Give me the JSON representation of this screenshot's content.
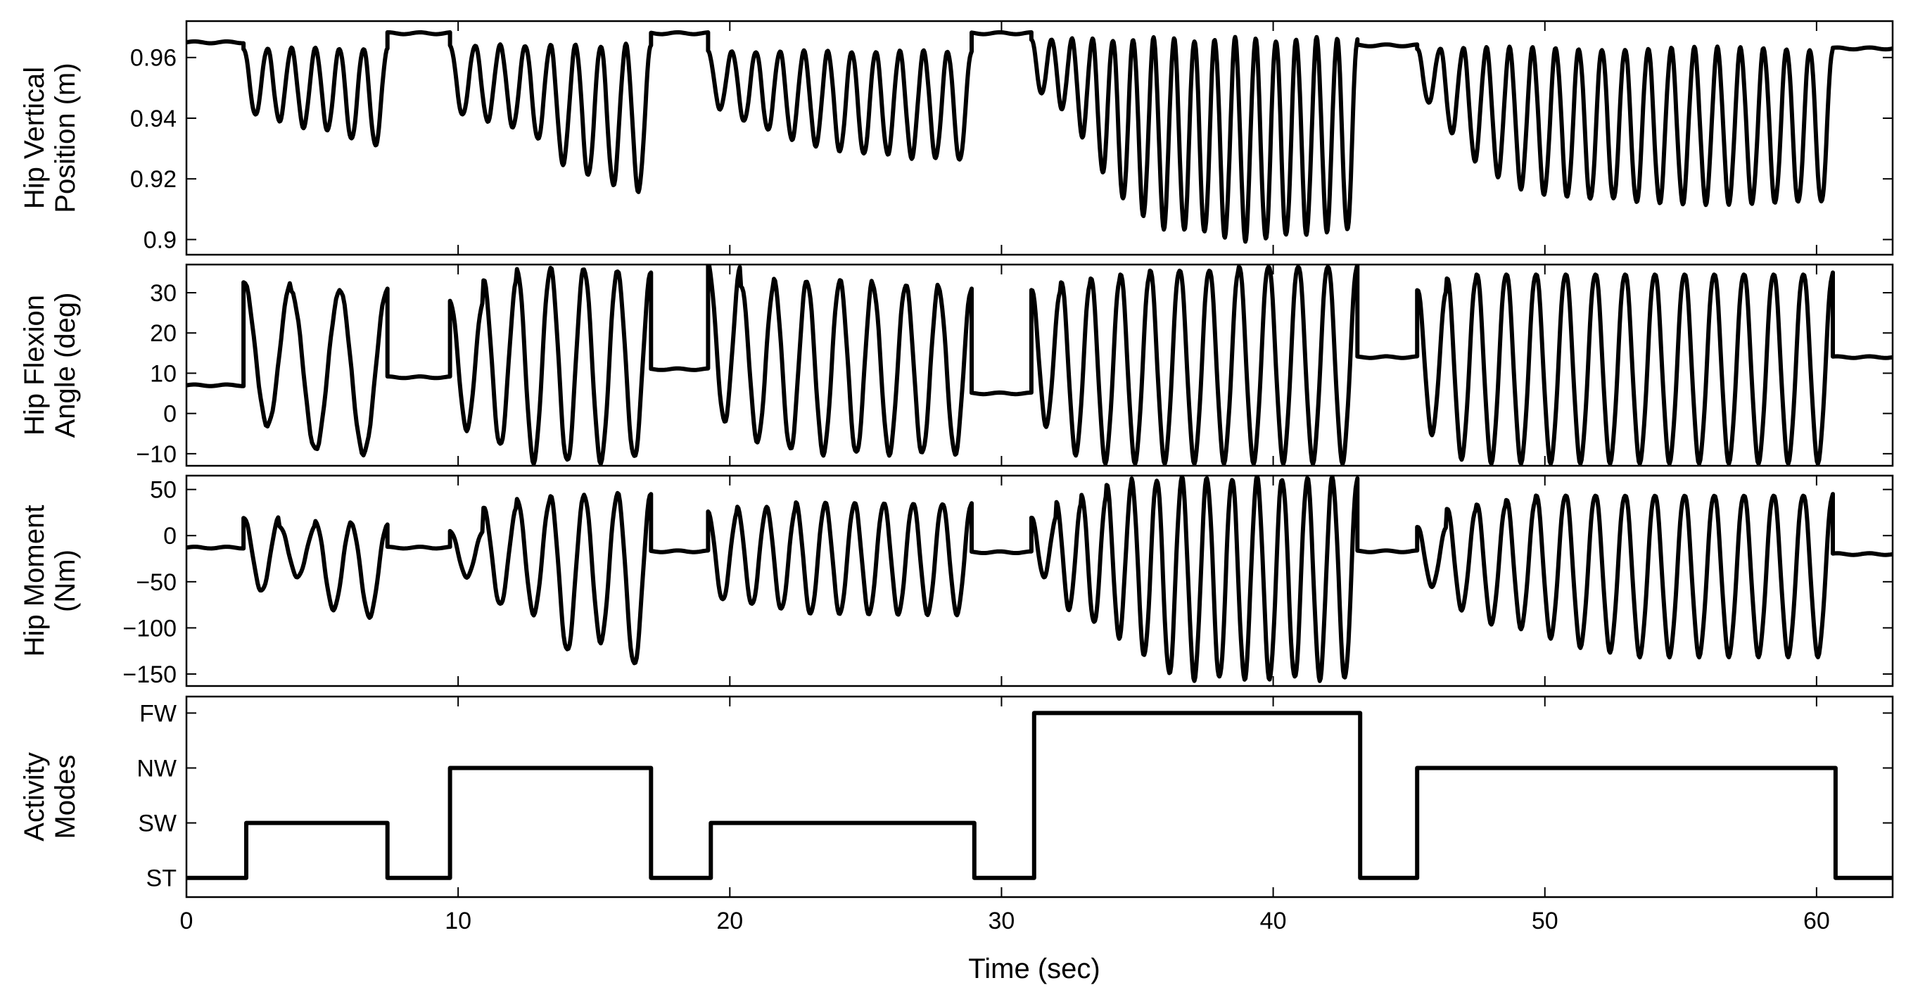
{
  "chart_data": [
    {
      "type": "line",
      "ylabel": [
        "Hip Vertical",
        "Position (m)"
      ],
      "xlim": [
        0,
        62.8
      ],
      "ylim": [
        0.895,
        0.972
      ],
      "yticks": [
        0.9,
        0.92,
        0.94,
        0.96
      ],
      "ytick_labels": [
        "0.9",
        "0.92",
        "0.94",
        "0.96"
      ],
      "segments": [
        {
          "t0": 0.0,
          "t1": 2.1,
          "kind": "flat",
          "base": 0.965
        },
        {
          "t0": 2.1,
          "t1": 7.4,
          "kind": "osc",
          "high": 0.963,
          "low": [
            0.941,
            0.939,
            0.937,
            0.936,
            0.933,
            0.931
          ],
          "period": 0.9
        },
        {
          "t0": 7.4,
          "t1": 9.7,
          "kind": "flat",
          "base": 0.968
        },
        {
          "t0": 9.7,
          "t1": 17.1,
          "kind": "osc",
          "high": 0.964,
          "low": [
            0.941,
            0.939,
            0.937,
            0.933,
            0.925,
            0.921,
            0.918,
            0.916
          ],
          "period": 0.9
        },
        {
          "t0": 17.1,
          "t1": 19.2,
          "kind": "flat",
          "base": 0.968
        },
        {
          "t0": 19.2,
          "t1": 28.9,
          "kind": "osc",
          "high": 0.962,
          "low": [
            0.943,
            0.939,
            0.936,
            0.933,
            0.931,
            0.929,
            0.928,
            0.928,
            0.927,
            0.927,
            0.926
          ],
          "period": 0.9
        },
        {
          "t0": 28.9,
          "t1": 31.1,
          "kind": "flat",
          "base": 0.968
        },
        {
          "t0": 31.1,
          "t1": 43.1,
          "kind": "osc",
          "high": 0.966,
          "low": [
            0.948,
            0.943,
            0.934,
            0.922,
            0.913,
            0.908,
            0.904,
            0.903,
            0.902,
            0.901,
            0.9,
            0.9,
            0.901,
            0.902,
            0.903,
            0.903
          ],
          "period": 0.75
        },
        {
          "t0": 43.1,
          "t1": 45.3,
          "kind": "flat",
          "base": 0.964
        },
        {
          "t0": 45.3,
          "t1": 60.6,
          "kind": "osc",
          "high": 0.963,
          "low": [
            0.945,
            0.935,
            0.926,
            0.921,
            0.917,
            0.915,
            0.914,
            0.913,
            0.913,
            0.912,
            0.912,
            0.912,
            0.912,
            0.912,
            0.912,
            0.912,
            0.912,
            0.912
          ],
          "period": 0.85
        },
        {
          "t0": 60.6,
          "t1": 62.8,
          "kind": "flat",
          "base": 0.963
        }
      ]
    },
    {
      "type": "line",
      "ylabel": [
        "Hip Flexion",
        "Angle (deg)"
      ],
      "xlim": [
        0,
        62.8
      ],
      "ylim": [
        -13,
        37
      ],
      "yticks": [
        -10,
        0,
        10,
        20,
        30
      ],
      "ytick_labels": [
        "−10",
        "0",
        "10",
        "20",
        "30"
      ],
      "segments": [
        {
          "t0": 0.0,
          "t1": 2.1,
          "kind": "flat",
          "base": 7
        },
        {
          "t0": 2.1,
          "t1": 7.4,
          "kind": "osc",
          "high": [
            33,
            30,
            31
          ],
          "low": [
            -3,
            -9,
            -10
          ],
          "period": 1.75
        },
        {
          "t0": 7.4,
          "t1": 9.7,
          "kind": "flat",
          "base": 9
        },
        {
          "t0": 9.7,
          "t1": 17.1,
          "kind": "osc",
          "high": [
            28,
            33,
            36,
            36,
            36,
            35
          ],
          "low": [
            -4,
            -8,
            -12,
            -12,
            -12,
            -11
          ],
          "period": 1.25
        },
        {
          "t0": 17.1,
          "t1": 19.2,
          "kind": "flat",
          "base": 11
        },
        {
          "t0": 19.2,
          "t1": 28.9,
          "kind": "osc",
          "high": [
            37,
            32,
            33,
            33,
            33,
            32,
            32,
            31
          ],
          "low": [
            -2,
            -7,
            -9,
            -10,
            -10,
            -10,
            -10,
            -10
          ],
          "period": 1.21
        },
        {
          "t0": 28.9,
          "t1": 31.1,
          "kind": "flat",
          "base": 5
        },
        {
          "t0": 31.1,
          "t1": 43.1,
          "kind": "osc",
          "high": [
            31,
            33,
            34,
            35,
            36,
            36,
            36,
            37,
            37,
            37,
            37
          ],
          "low": [
            -3,
            -10,
            -12,
            -12,
            -12,
            -12,
            -12,
            -12,
            -12,
            -12,
            -12
          ],
          "period": 1.09
        },
        {
          "t0": 43.1,
          "t1": 45.3,
          "kind": "flat",
          "base": 14
        },
        {
          "t0": 45.3,
          "t1": 60.6,
          "kind": "osc",
          "high": [
            31,
            34,
            35,
            35,
            35,
            35,
            35,
            35,
            35,
            35,
            35,
            35,
            35,
            35
          ],
          "low": [
            -5,
            -11,
            -12,
            -12,
            -12,
            -12,
            -12,
            -12,
            -12,
            -12,
            -12,
            -12,
            -12,
            -12
          ],
          "period": 1.09
        },
        {
          "t0": 60.6,
          "t1": 62.8,
          "kind": "flat",
          "base": 14
        }
      ]
    },
    {
      "type": "line",
      "ylabel": [
        "Hip Moment",
        "(Nm)"
      ],
      "xlim": [
        0,
        62.8
      ],
      "ylim": [
        -163,
        65
      ],
      "yticks": [
        -150,
        -100,
        -50,
        0,
        50
      ],
      "ytick_labels": [
        "−150",
        "−100",
        "−50",
        "0",
        "50"
      ],
      "segments": [
        {
          "t0": 0.0,
          "t1": 2.1,
          "kind": "flat",
          "base": -13
        },
        {
          "t0": 2.1,
          "t1": 7.4,
          "kind": "osc",
          "high": [
            20,
            10,
            15,
            12
          ],
          "low": [
            -60,
            -45,
            -80,
            -88
          ],
          "period": 1.32
        },
        {
          "t0": 7.4,
          "t1": 9.7,
          "kind": "flat",
          "base": -13
        },
        {
          "t0": 9.7,
          "t1": 17.1,
          "kind": "osc",
          "high": [
            5,
            30,
            40,
            42,
            45,
            45
          ],
          "low": [
            -45,
            -75,
            -85,
            -125,
            -115,
            -140
          ],
          "period": 1.25
        },
        {
          "t0": 17.1,
          "t1": 19.2,
          "kind": "flat",
          "base": -17
        },
        {
          "t0": 19.2,
          "t1": 28.9,
          "kind": "osc",
          "high": [
            25,
            30,
            30,
            35,
            35,
            35,
            35,
            35,
            35
          ],
          "low": [
            -70,
            -75,
            -80,
            -85,
            -85,
            -85,
            -85,
            -85,
            -85
          ],
          "period": 1.08
        },
        {
          "t0": 28.9,
          "t1": 31.1,
          "kind": "flat",
          "base": -18
        },
        {
          "t0": 31.1,
          "t1": 43.1,
          "kind": "osc",
          "high": [
            20,
            35,
            45,
            55,
            60,
            62,
            62,
            62,
            62,
            62,
            62,
            62,
            62
          ],
          "low": [
            -45,
            -80,
            -95,
            -110,
            -130,
            -150,
            -155,
            -155,
            -155,
            -155,
            -155,
            -155,
            -155
          ],
          "period": 0.92
        },
        {
          "t0": 43.1,
          "t1": 45.3,
          "kind": "flat",
          "base": -17
        },
        {
          "t0": 45.3,
          "t1": 60.6,
          "kind": "osc",
          "high": [
            10,
            30,
            35,
            40,
            45,
            45,
            45,
            45,
            45,
            45,
            45,
            45,
            45,
            45
          ],
          "low": [
            -55,
            -80,
            -95,
            -100,
            -110,
            -120,
            -125,
            -130,
            -130,
            -130,
            -130,
            -130,
            -130,
            -130
          ],
          "period": 1.09
        },
        {
          "t0": 60.6,
          "t1": 62.8,
          "kind": "flat",
          "base": -20
        }
      ]
    },
    {
      "type": "line",
      "ylabel": [
        "Activity",
        "Modes"
      ],
      "xlabel": "Time (sec)",
      "xlim": [
        0,
        62.8
      ],
      "ylim": [
        -0.35,
        3.3
      ],
      "yticks": [
        0,
        1,
        2,
        3
      ],
      "ytick_labels": [
        "ST",
        "SW",
        "NW",
        "FW"
      ],
      "xticks": [
        0,
        10,
        20,
        30,
        40,
        50,
        60
      ],
      "xtick_labels": [
        "0",
        "10",
        "20",
        "30",
        "40",
        "50",
        "60"
      ],
      "steps": [
        {
          "t0": 0.0,
          "t1": 2.2,
          "mode": 0
        },
        {
          "t0": 2.2,
          "t1": 7.4,
          "mode": 1
        },
        {
          "t0": 7.4,
          "t1": 9.7,
          "mode": 0
        },
        {
          "t0": 9.7,
          "t1": 17.1,
          "mode": 2
        },
        {
          "t0": 17.1,
          "t1": 19.3,
          "mode": 0
        },
        {
          "t0": 19.3,
          "t1": 29.0,
          "mode": 1
        },
        {
          "t0": 29.0,
          "t1": 31.2,
          "mode": 0
        },
        {
          "t0": 31.2,
          "t1": 43.2,
          "mode": 3
        },
        {
          "t0": 43.2,
          "t1": 45.3,
          "mode": 0
        },
        {
          "t0": 45.3,
          "t1": 60.7,
          "mode": 2
        },
        {
          "t0": 60.7,
          "t1": 62.8,
          "mode": 0
        }
      ]
    }
  ]
}
